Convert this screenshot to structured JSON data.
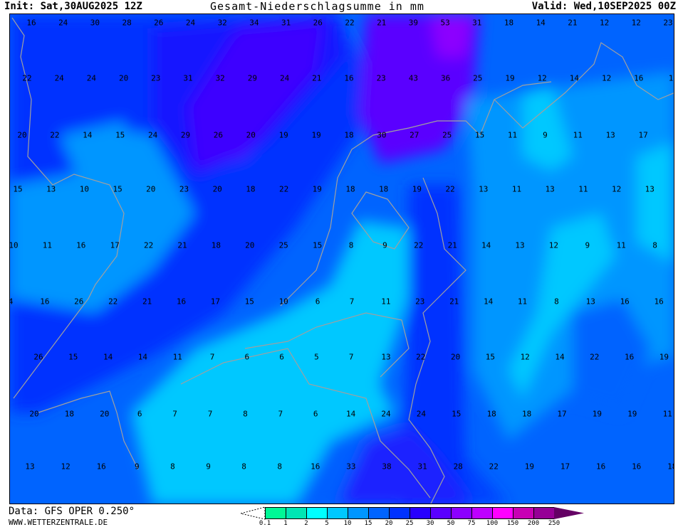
{
  "header": {
    "init": "Init: Sat,30AUG2025 12Z",
    "title": "Gesamt-Niederschlagsumme in mm",
    "valid": "Valid: Wed,10SEP2025 00Z"
  },
  "footer": {
    "data_source": "Data: GFS OPER 0.250°",
    "website": "WWW.WETTERZENTRALE.DE"
  },
  "legend": {
    "unit": "mm",
    "ticks": [
      "0.1",
      "1",
      "2",
      "5",
      "10",
      "15",
      "20",
      "25",
      "30",
      "50",
      "75",
      "100",
      "150",
      "200",
      "250"
    ],
    "colors": [
      "#00f896",
      "#00e6b4",
      "#00ffff",
      "#00c8ff",
      "#0096ff",
      "#0064ff",
      "#0032ff",
      "#2800ff",
      "#5a00ff",
      "#8c00ff",
      "#be00ff",
      "#ff00ff",
      "#c800b4",
      "#960096",
      "#640064"
    ]
  },
  "map": {
    "coastline_color": "#a0a0a0",
    "grid_values": [
      [
        16,
        24,
        30,
        28,
        26,
        24,
        32,
        34,
        31,
        26,
        22,
        21,
        39,
        53,
        31,
        18,
        14,
        21,
        12,
        12,
        23
      ],
      [
        22,
        24,
        24,
        20,
        23,
        31,
        32,
        29,
        24,
        21,
        16,
        23,
        43,
        36,
        25,
        19,
        12,
        14,
        12,
        16,
        1
      ],
      [
        20,
        22,
        14,
        15,
        24,
        29,
        26,
        20,
        19,
        19,
        18,
        30,
        27,
        25,
        15,
        11,
        9,
        11,
        13,
        17
      ],
      [
        15,
        13,
        10,
        15,
        20,
        23,
        20,
        18,
        22,
        19,
        18,
        18,
        19,
        22,
        13,
        11,
        13,
        11,
        12,
        13
      ],
      [
        10,
        11,
        16,
        17,
        22,
        21,
        18,
        20,
        25,
        15,
        8,
        9,
        22,
        21,
        14,
        13,
        12,
        9,
        11,
        8
      ],
      [
        4,
        16,
        26,
        22,
        21,
        16,
        17,
        15,
        10,
        6,
        7,
        11,
        23,
        21,
        14,
        11,
        8,
        13,
        16,
        16
      ],
      [
        26,
        15,
        14,
        14,
        11,
        7,
        6,
        6,
        5,
        7,
        13,
        22,
        20,
        15,
        12,
        14,
        22,
        16,
        19
      ],
      [
        20,
        18,
        20,
        6,
        7,
        7,
        8,
        7,
        6,
        14,
        24,
        24,
        15,
        18,
        18,
        17,
        19,
        19,
        11
      ],
      [
        13,
        12,
        16,
        9,
        8,
        9,
        8,
        8,
        16,
        33,
        38,
        31,
        28,
        22,
        19,
        17,
        16,
        16,
        18
      ]
    ]
  }
}
